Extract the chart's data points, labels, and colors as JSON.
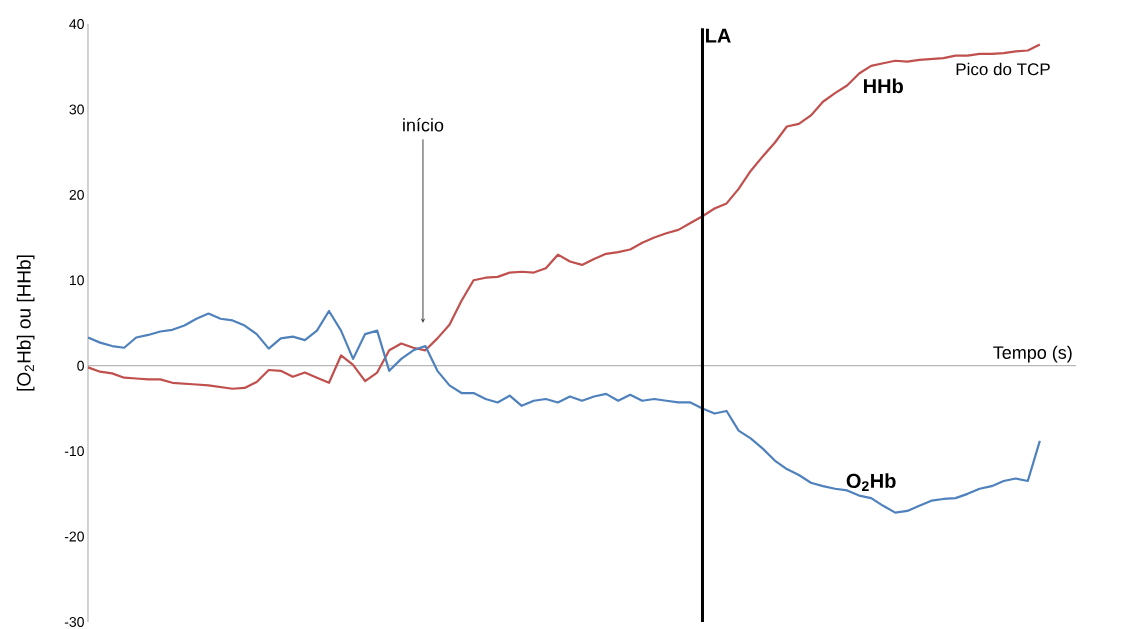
{
  "chart_data": {
    "type": "line",
    "xlabel": "Tempo (s)",
    "ylabel": "[O$_{2}$Hb] ou [HHb]",
    "categories": [
      null,
      null,
      null,
      null,
      null,
      null,
      null,
      null,
      null,
      null,
      null,
      null,
      null,
      null,
      null,
      null,
      null,
      null,
      null,
      null,
      null,
      null,
      null,
      null,
      null,
      null,
      null,
      null,
      null,
      null,
      null,
      null,
      null,
      null,
      null,
      null,
      null,
      null,
      null,
      null,
      null,
      null,
      null,
      null,
      null,
      null,
      null,
      null,
      null,
      null,
      null,
      null,
      null,
      null,
      null,
      null,
      null,
      null,
      null,
      null,
      null,
      null,
      null,
      null,
      null,
      null,
      null,
      null,
      null,
      null,
      null,
      null,
      null,
      null,
      null,
      null,
      null,
      null,
      null,
      null
    ],
    "series": [
      {
        "name": "HHb",
        "color": "#c0504d",
        "values": [
          -0.2,
          -0.7,
          -0.9,
          -1.4,
          -1.5,
          -1.6,
          -1.6,
          -2.0,
          -2.1,
          -2.2,
          -2.3,
          -2.5,
          -2.7,
          -2.6,
          -1.9,
          -0.5,
          -0.6,
          -1.3,
          -0.8,
          -1.4,
          -2.0,
          1.2,
          0.1,
          -1.8,
          -0.8,
          1.8,
          2.6,
          2.1,
          1.8,
          3.2,
          4.8,
          7.6,
          10.0,
          10.3,
          10.4,
          10.9,
          11.0,
          10.9,
          11.4,
          13.0,
          12.2,
          11.8,
          12.5,
          13.1,
          13.3,
          13.6,
          14.4,
          15.0,
          15.5,
          15.9,
          16.7,
          17.5,
          18.4,
          19.0,
          20.7,
          22.8,
          24.5,
          26.1,
          28.0,
          28.3,
          29.3,
          30.9,
          31.9,
          32.8,
          34.2,
          35.1,
          35.4,
          35.7,
          35.6,
          35.8,
          35.9,
          36.0,
          36.3,
          36.3,
          36.5,
          36.5,
          36.6,
          36.8,
          36.9,
          37.6
        ]
      },
      {
        "name": "O$_{2}$Hb",
        "color": "#4f81bd",
        "values": [
          3.3,
          2.7,
          2.3,
          2.1,
          3.3,
          3.6,
          4.0,
          4.2,
          4.7,
          5.5,
          6.1,
          5.5,
          5.3,
          4.7,
          3.7,
          2.0,
          3.2,
          3.4,
          3.0,
          4.1,
          6.4,
          4.1,
          0.8,
          3.7,
          4.1,
          -0.6,
          0.8,
          1.8,
          2.3,
          -0.6,
          -2.3,
          -3.2,
          -3.2,
          -3.9,
          -4.3,
          -3.5,
          -4.7,
          -4.1,
          -3.9,
          -4.3,
          -3.6,
          -4.1,
          -3.6,
          -3.3,
          -4.1,
          -3.4,
          -4.1,
          -3.9,
          -4.1,
          -4.3,
          -4.3,
          -5.0,
          -5.6,
          -5.3,
          -7.6,
          -8.5,
          -9.7,
          -11.1,
          -12.1,
          -12.8,
          -13.7,
          -14.1,
          -14.4,
          -14.6,
          -15.2,
          -15.5,
          -16.4,
          -17.2,
          -17.0,
          -16.4,
          -15.8,
          -15.6,
          -15.5,
          -15.0,
          -14.4,
          -14.1,
          -13.5,
          -13.2,
          -13.5,
          -8.8
        ]
      }
    ],
    "ylim": [
      -30,
      40
    ],
    "yticks": [
      -30,
      -20,
      -10,
      0,
      10,
      20,
      30,
      40
    ],
    "annotations": [
      "LA",
      "início",
      "Pico do TCP"
    ],
    "marker": "none",
    "line_style": "solid"
  }
}
